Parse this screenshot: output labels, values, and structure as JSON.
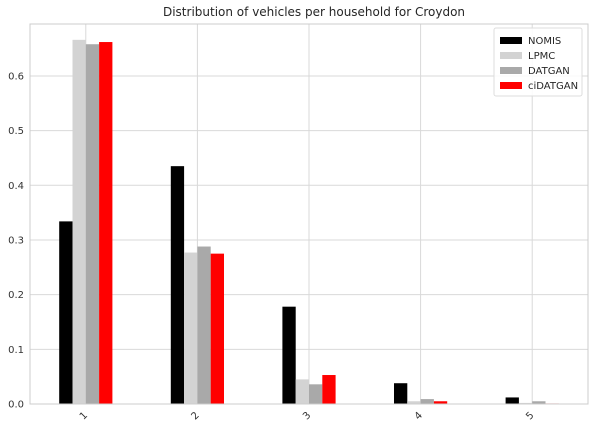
{
  "chart_data": {
    "type": "bar",
    "title": "Distribution of vehicles per household for Croydon",
    "xlabel": "",
    "ylabel": "",
    "categories": [
      "1",
      "2",
      "3",
      "4",
      "5"
    ],
    "ylim": [
      0,
      0.695
    ],
    "yticks": [
      0.0,
      0.1,
      0.2,
      0.3,
      0.4,
      0.5,
      0.6
    ],
    "ytick_labels": [
      "0.0",
      "0.1",
      "0.2",
      "0.3",
      "0.4",
      "0.5",
      "0.6"
    ],
    "grid": true,
    "legend_position": "top-right",
    "series": [
      {
        "name": "NOMIS",
        "color": "#000000",
        "values": [
          0.334,
          0.435,
          0.178,
          0.038,
          0.012
        ]
      },
      {
        "name": "LPMC",
        "color": "#d3d3d3",
        "values": [
          0.666,
          0.277,
          0.045,
          0.005,
          0.002
        ]
      },
      {
        "name": "DATGAN",
        "color": "#a9a9a9",
        "values": [
          0.658,
          0.288,
          0.036,
          0.009,
          0.005
        ]
      },
      {
        "name": "ciDATGAN",
        "color": "#ff0000",
        "values": [
          0.662,
          0.275,
          0.053,
          0.005,
          0.001
        ]
      }
    ]
  }
}
